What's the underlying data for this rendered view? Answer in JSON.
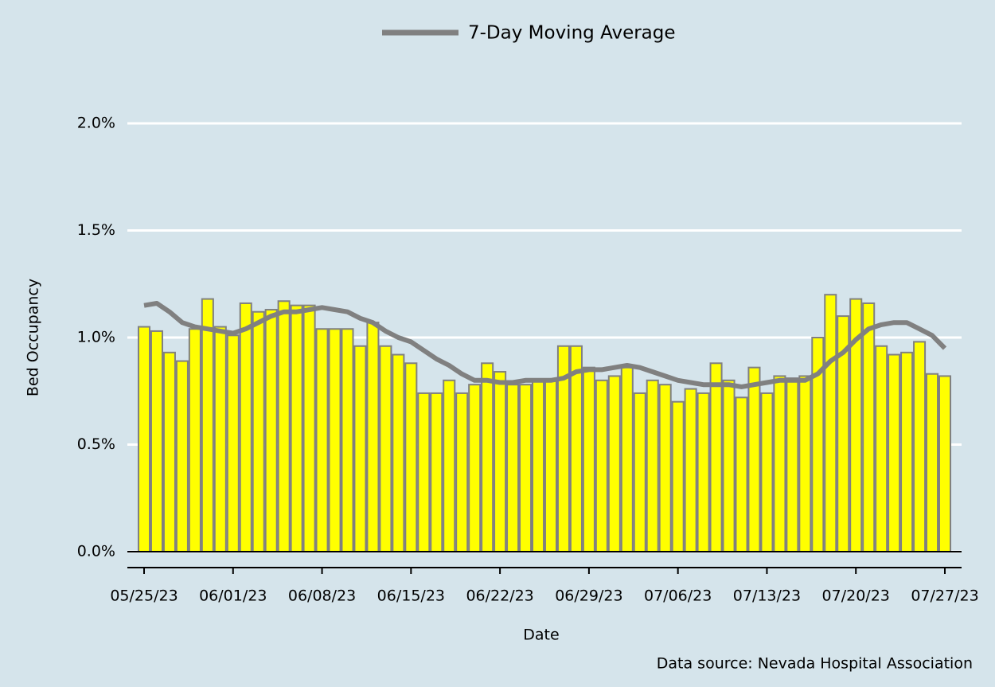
{
  "chart_data": {
    "type": "bar",
    "x": [
      "05/25/23",
      "05/26/23",
      "05/27/23",
      "05/28/23",
      "05/29/23",
      "05/30/23",
      "05/31/23",
      "06/01/23",
      "06/02/23",
      "06/03/23",
      "06/04/23",
      "06/05/23",
      "06/06/23",
      "06/07/23",
      "06/08/23",
      "06/09/23",
      "06/10/23",
      "06/11/23",
      "06/12/23",
      "06/13/23",
      "06/14/23",
      "06/15/23",
      "06/16/23",
      "06/17/23",
      "06/18/23",
      "06/19/23",
      "06/20/23",
      "06/21/23",
      "06/22/23",
      "06/23/23",
      "06/24/23",
      "06/25/23",
      "06/26/23",
      "06/27/23",
      "06/28/23",
      "06/29/23",
      "06/30/23",
      "07/01/23",
      "07/02/23",
      "07/03/23",
      "07/04/23",
      "07/05/23",
      "07/06/23",
      "07/07/23",
      "07/08/23",
      "07/09/23",
      "07/10/23",
      "07/11/23",
      "07/12/23",
      "07/13/23",
      "07/14/23",
      "07/15/23",
      "07/16/23",
      "07/17/23",
      "07/18/23",
      "07/19/23",
      "07/20/23",
      "07/21/23",
      "07/22/23",
      "07/23/23",
      "07/24/23",
      "07/25/23",
      "07/26/23",
      "07/27/23"
    ],
    "series": [
      {
        "type": "bar",
        "color": "#ffff00",
        "values": [
          1.05,
          1.03,
          0.93,
          0.89,
          1.04,
          1.18,
          1.05,
          1.01,
          1.16,
          1.12,
          1.13,
          1.17,
          1.15,
          1.15,
          1.04,
          1.04,
          1.04,
          0.96,
          1.07,
          0.96,
          0.92,
          0.88,
          0.74,
          0.74,
          0.8,
          0.74,
          0.78,
          0.88,
          0.84,
          0.78,
          0.78,
          0.8,
          0.8,
          0.96,
          0.96,
          0.86,
          0.8,
          0.82,
          0.86,
          0.74,
          0.8,
          0.78,
          0.7,
          0.76,
          0.74,
          0.88,
          0.8,
          0.72,
          0.86,
          0.74,
          0.82,
          0.81,
          0.82,
          1.0,
          1.2,
          1.1,
          1.18,
          1.16,
          0.96,
          0.92,
          0.93,
          0.98,
          0.83,
          0.82
        ]
      },
      {
        "type": "line",
        "name": "7-Day Moving Average",
        "color": "#808080",
        "values": [
          1.15,
          1.16,
          1.12,
          1.07,
          1.05,
          1.04,
          1.03,
          1.02,
          1.04,
          1.07,
          1.1,
          1.12,
          1.12,
          1.13,
          1.14,
          1.13,
          1.12,
          1.09,
          1.07,
          1.03,
          1.0,
          0.98,
          0.94,
          0.9,
          0.87,
          0.83,
          0.8,
          0.8,
          0.79,
          0.79,
          0.8,
          0.8,
          0.8,
          0.81,
          0.84,
          0.85,
          0.85,
          0.86,
          0.87,
          0.86,
          0.84,
          0.82,
          0.8,
          0.79,
          0.78,
          0.78,
          0.78,
          0.77,
          0.78,
          0.79,
          0.8,
          0.8,
          0.8,
          0.83,
          0.89,
          0.93,
          0.99,
          1.04,
          1.06,
          1.07,
          1.07,
          1.04,
          1.01,
          0.95
        ]
      }
    ],
    "xticks": [
      "05/25/23",
      "06/01/23",
      "06/08/23",
      "06/15/23",
      "06/22/23",
      "06/29/23",
      "07/06/23",
      "07/13/23",
      "07/20/23",
      "07/27/23"
    ],
    "ylim": [
      0,
      2
    ],
    "yticks": [
      {
        "value": 0,
        "label": "0.0%"
      },
      {
        "value": 0.5,
        "label": "0.5%"
      },
      {
        "value": 1,
        "label": "1.0%"
      },
      {
        "value": 1.5,
        "label": "1.5%"
      },
      {
        "value": 2,
        "label": "2.0%"
      }
    ],
    "xlabel": "Date",
    "ylabel": "Bed Occupancy",
    "source": "Data source: Nevada Hospital Association",
    "grid": true,
    "legend": "top"
  }
}
